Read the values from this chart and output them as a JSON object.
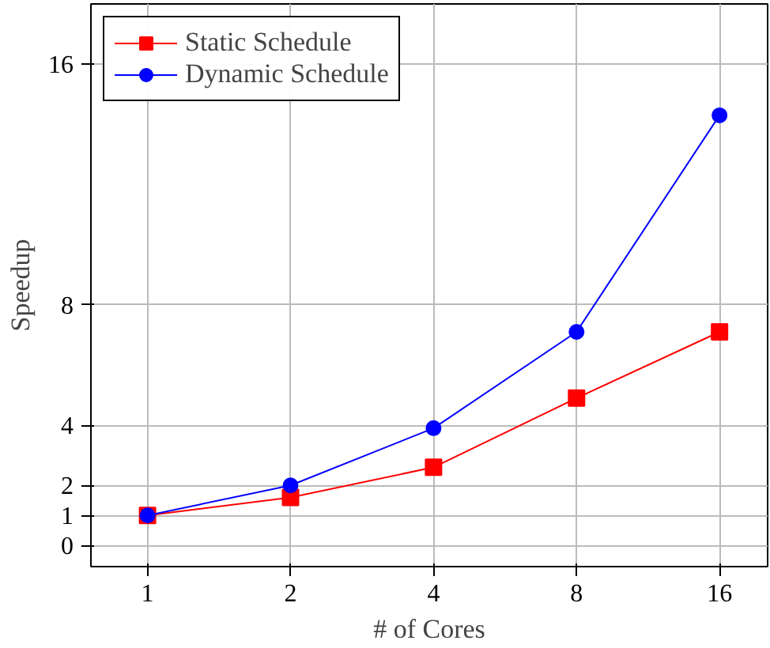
{
  "chart_data": {
    "type": "line",
    "xlabel": "# of Cores",
    "ylabel": "Speedup",
    "log": "x",
    "x": [
      1,
      2,
      4,
      8,
      16
    ],
    "xlim": [
      0.76,
      20.2
    ],
    "xticks": [
      1,
      2,
      4,
      8,
      16
    ],
    "ylim": [
      -0.7,
      18
    ],
    "yticks": [
      0,
      1,
      2,
      4,
      8,
      16
    ],
    "grid": true,
    "legend": "top left",
    "series": [
      {
        "name": "Static Schedule",
        "color": "#ff0000",
        "marker": "square",
        "values": [
          1.0,
          1.6,
          2.6,
          4.9,
          7.1
        ]
      },
      {
        "name": "Dynamic Schedule",
        "color": "#0000ff",
        "marker": "circle",
        "values": [
          1.0,
          2.0,
          3.9,
          7.1,
          14.3
        ]
      }
    ]
  }
}
